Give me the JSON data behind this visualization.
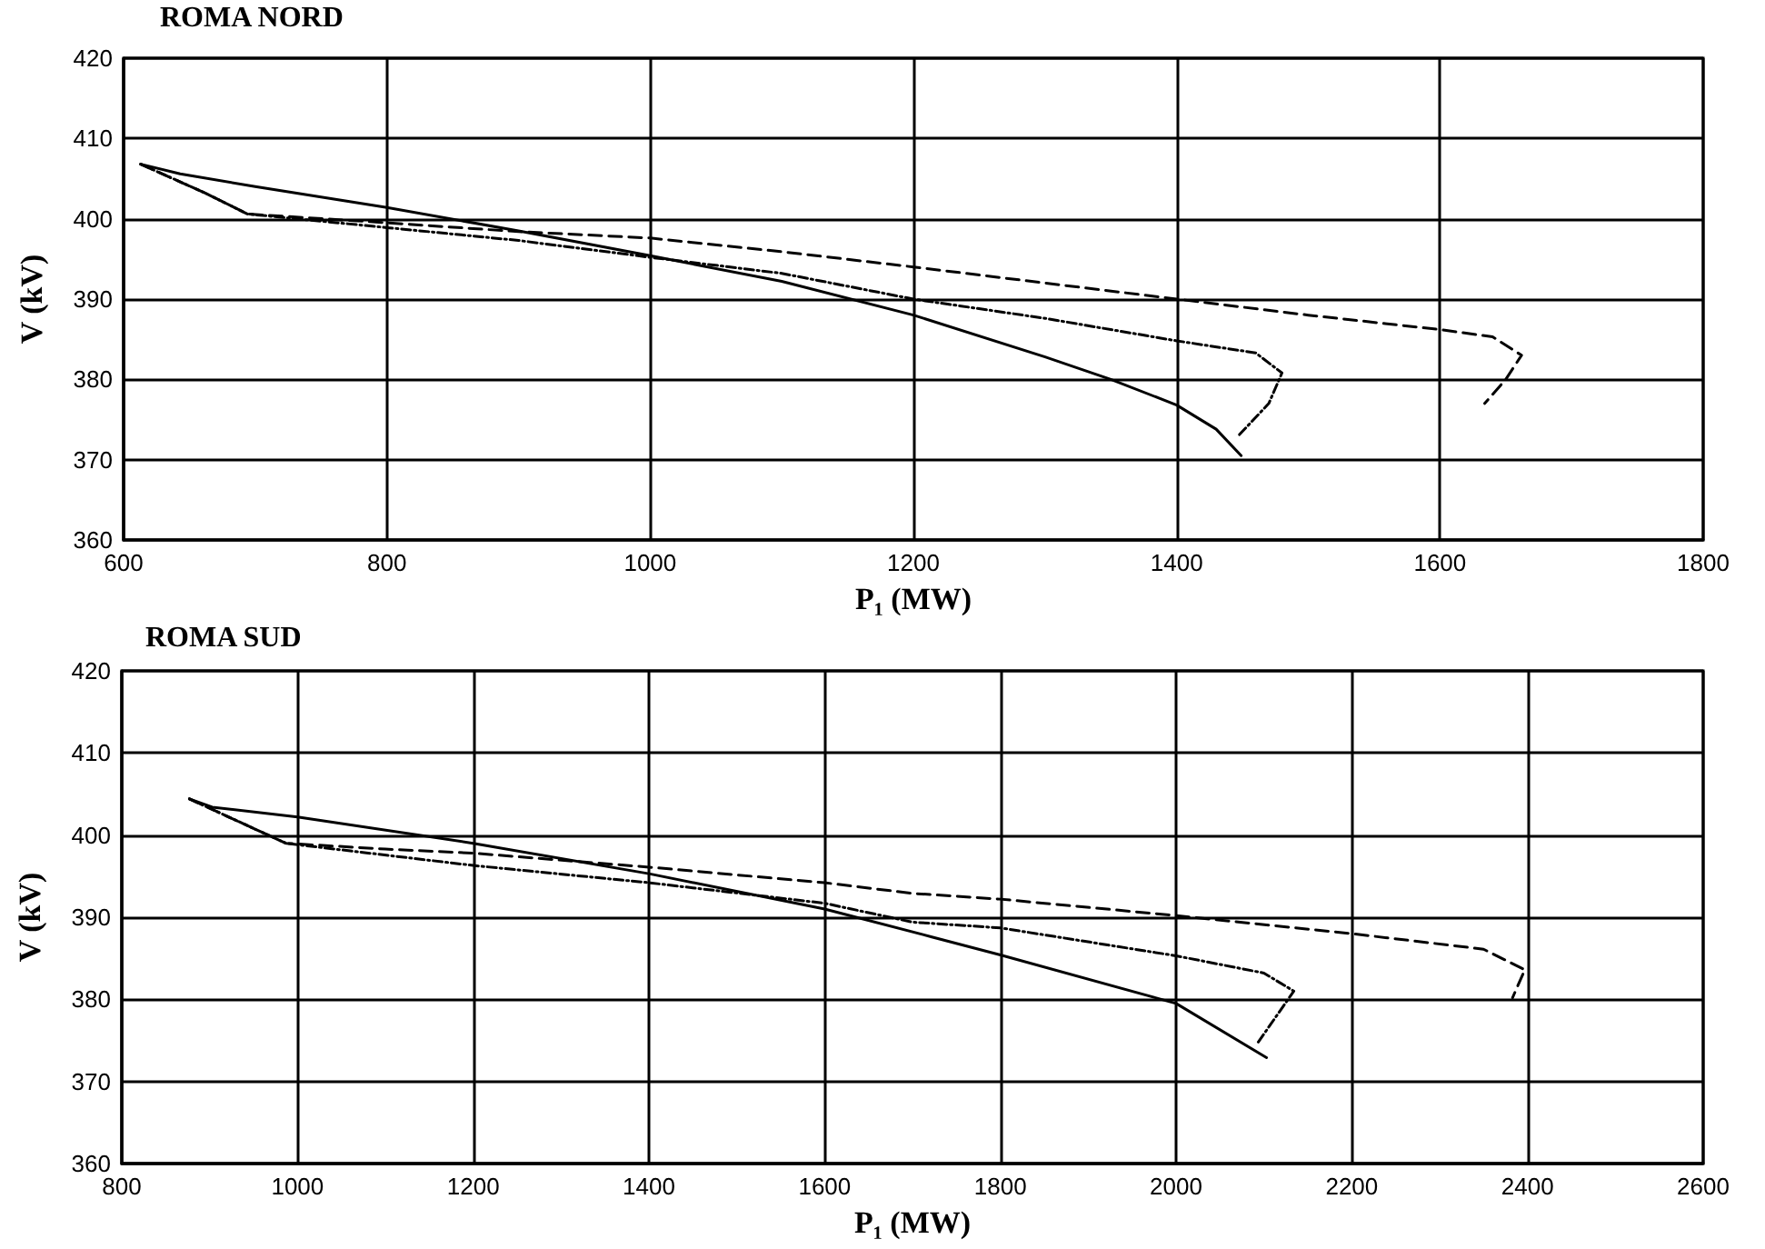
{
  "chart_data": [
    {
      "type": "line",
      "title": "ROMA NORD",
      "xlabel": "P₁ (MW)",
      "ylabel": "V (kV)",
      "xlim": [
        600,
        1800
      ],
      "xticks": [
        600,
        800,
        1000,
        1200,
        1400,
        1600,
        1800
      ],
      "ylim": [
        360,
        420
      ],
      "yticks": [
        360,
        370,
        380,
        390,
        400,
        410,
        420
      ],
      "grid": true,
      "marker": "none",
      "series": [
        {
          "color": "#000000",
          "line_style": "solid",
          "x": [
            613,
            643,
            700,
            800,
            900,
            1000,
            1100,
            1200,
            1300,
            1350,
            1400,
            1430,
            1449
          ],
          "values": [
            406.8,
            405.6,
            404,
            401.4,
            398.5,
            395.4,
            392.2,
            388,
            382.8,
            380,
            376.8,
            373.8,
            370.5
          ]
        },
        {
          "color": "#000000",
          "line_style": "dotted",
          "x": [
            613,
            662,
            694,
            800,
            900,
            1000,
            1100,
            1200,
            1300,
            1400,
            1460,
            1480,
            1470,
            1447
          ],
          "values": [
            406.8,
            403.2,
            400.6,
            398.9,
            397.3,
            395.2,
            393.2,
            390,
            387.6,
            384.8,
            383.3,
            380.8,
            377,
            373
          ]
        },
        {
          "color": "#000000",
          "line_style": "dashed",
          "x": [
            613,
            662,
            694,
            800,
            900,
            1000,
            1100,
            1200,
            1300,
            1400,
            1500,
            1600,
            1640,
            1662,
            1650,
            1634
          ],
          "values": [
            406.8,
            403.2,
            400.6,
            399.5,
            398.4,
            397.6,
            395.9,
            394,
            392,
            390,
            388,
            386.2,
            385.3,
            383,
            380,
            377
          ]
        }
      ]
    },
    {
      "type": "line",
      "title": "ROMA SUD",
      "xlabel": "P₁ (MW)",
      "ylabel": "V (kV)",
      "xlim": [
        800,
        2600
      ],
      "xticks": [
        800,
        1000,
        1200,
        1400,
        1600,
        1800,
        2000,
        2200,
        2400,
        2600
      ],
      "ylim": [
        360,
        420
      ],
      "yticks": [
        360,
        370,
        380,
        390,
        400,
        410,
        420
      ],
      "grid": true,
      "marker": "none",
      "series": [
        {
          "color": "#000000",
          "line_style": "solid",
          "x": [
            877,
            903,
            1000,
            1200,
            1400,
            1600,
            1722,
            1800,
            2000,
            2103
          ],
          "values": [
            404.4,
            403.4,
            402.2,
            399,
            395.3,
            391,
            387.6,
            385.4,
            379.5,
            372.9
          ]
        },
        {
          "color": "#000000",
          "line_style": "dotted",
          "x": [
            877,
            987,
            1200,
            1400,
            1600,
            1700,
            1800,
            2000,
            2100,
            2134,
            2093
          ],
          "values": [
            404.4,
            399,
            396.3,
            394.2,
            391.7,
            389.4,
            388.7,
            385.3,
            383.2,
            381,
            374.7
          ]
        },
        {
          "color": "#000000",
          "line_style": "dashed",
          "x": [
            877,
            987,
            1100,
            1200,
            1400,
            1600,
            1700,
            1800,
            2000,
            2200,
            2350,
            2397,
            2383
          ],
          "values": [
            404.4,
            399,
            398.3,
            397.8,
            396.1,
            394.2,
            392.9,
            392.2,
            390.2,
            388,
            386.1,
            383.6,
            380.2
          ]
        }
      ]
    }
  ]
}
